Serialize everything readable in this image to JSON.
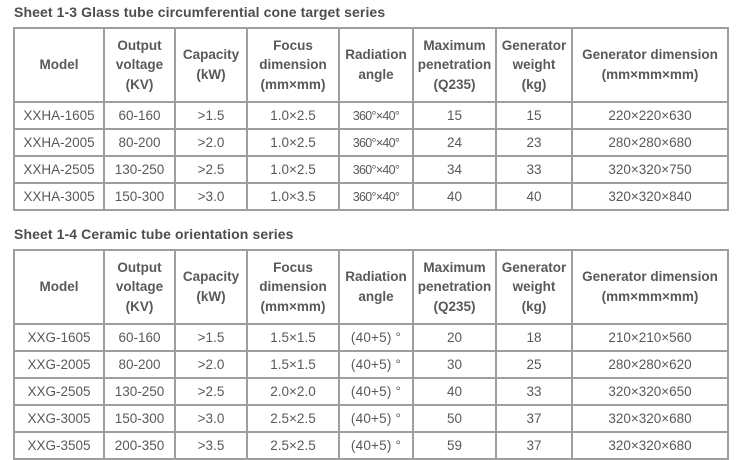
{
  "colors": {
    "border": "#9e9e9e",
    "cell_text": "#595959",
    "title_text": "#4d4d4d",
    "background": "#ffffff"
  },
  "tables": [
    {
      "title": "Sheet 1-3 Glass tube circumferential cone target series",
      "headers": [
        "Model",
        "Output\nvoltage\n(KV)",
        "Capacity\n(kW)",
        "Focus\ndimension\n(mm×mm)",
        "Radiation\nangle",
        "Maximum\npenetration\n(Q235)",
        "Generator\nweight\n(kg)",
        "Generator dimension\n(mm×mm×mm)"
      ],
      "rows": [
        [
          "XXHA-1605",
          "60-160",
          ">1.5",
          "1.0×2.5",
          "360°×40°",
          "15",
          "15",
          "220×220×630"
        ],
        [
          "XXHA-2005",
          "80-200",
          ">2.0",
          "1.0×2.5",
          "360°×40°",
          "24",
          "23",
          "280×280×680"
        ],
        [
          "XXHA-2505",
          "130-250",
          ">2.5",
          "1.0×2.5",
          "360°×40°",
          "34",
          "33",
          "320×320×750"
        ],
        [
          "XXHA-3005",
          "150-300",
          ">3.0",
          "1.0×3.5",
          "360°×40°",
          "40",
          "40",
          "320×320×840"
        ]
      ]
    },
    {
      "title": "Sheet 1-4 Ceramic tube orientation series",
      "headers": [
        "Model",
        "Output\nvoltage\n(KV)",
        "Capacity\n(kW)",
        "Focus\ndimension\n(mm×mm)",
        "Radiation\nangle",
        "Maximum\npenetration\n(Q235)",
        "Generator\nweight\n(kg)",
        "Generator dimension\n(mm×mm×mm)"
      ],
      "rows": [
        [
          "XXG-1605",
          "60-160",
          ">1.5",
          "1.5×1.5",
          "(40+5) °",
          "20",
          "18",
          "210×210×560"
        ],
        [
          "XXG-2005",
          "80-200",
          ">2.0",
          "1.5×1.5",
          "(40+5) °",
          "30",
          "25",
          "280×280×620"
        ],
        [
          "XXG-2505",
          "130-250",
          ">2.5",
          "2.0×2.0",
          "(40+5) °",
          "40",
          "33",
          "320×320×650"
        ],
        [
          "XXG-3005",
          "150-300",
          ">3.0",
          "2.5×2.5",
          "(40+5) °",
          "50",
          "37",
          "320×320×680"
        ],
        [
          "XXG-3505",
          "200-350",
          ">3.5",
          "2.5×2.5",
          "(40+5) °",
          "59",
          "37",
          "320×320×680"
        ]
      ]
    }
  ]
}
